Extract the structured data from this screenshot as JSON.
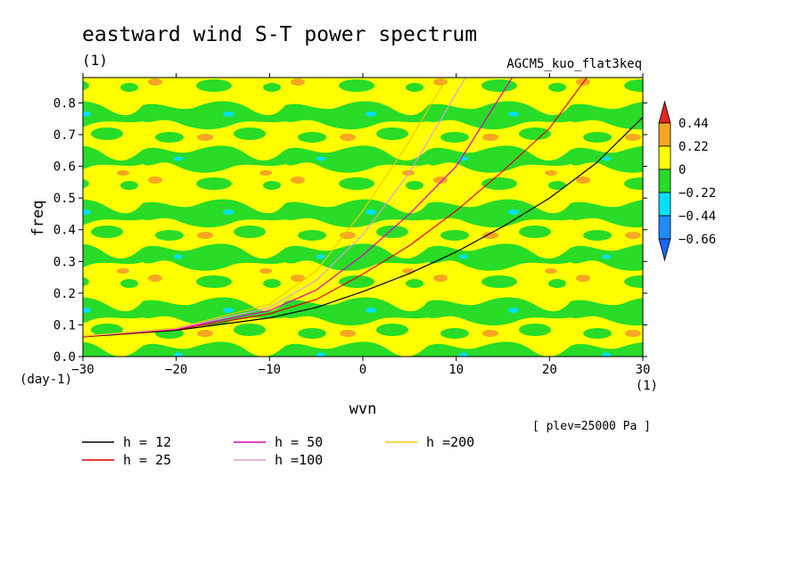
{
  "chart_data": {
    "type": "heatmap",
    "title": "eastward wind S-T power spectrum",
    "subtitle": "(1)",
    "run_label": "AGCM5_kuo_flat3keq",
    "xlabel": "wvn",
    "ylabel": "freq",
    "x_unit": "(1)",
    "y_unit": "(day-1)",
    "xlim": [
      -30,
      30
    ],
    "ylim": [
      0,
      0.88
    ],
    "x_ticks": [
      -30,
      -20,
      -10,
      0,
      10,
      20,
      30
    ],
    "x_tick_labels": [
      "-30",
      "-20",
      "-10",
      "0",
      "10",
      "20",
      "30"
    ],
    "y_ticks": [
      0,
      0.1,
      0.2,
      0.3,
      0.4,
      0.5,
      0.6,
      0.7,
      0.8
    ],
    "y_tick_labels": [
      "0.0",
      "0.1",
      "0.2",
      "0.3",
      "0.4",
      "0.5",
      "0.6",
      "0.7",
      "0.8"
    ],
    "colorbar": {
      "levels": [
        "0.44",
        "0.22",
        "0",
        "-0.22",
        "-0.44",
        "-0.66"
      ],
      "colors": [
        "#e8231e",
        "#f5a623",
        "#ffff00",
        "#28dc28",
        "#00e1ff",
        "#1e8cff",
        "#1e64ff"
      ]
    },
    "field_description": "normalized log power anomaly, mostly within -0.22 to 0.22",
    "annotation": "[ plev=25000 Pa ]",
    "curves": [
      {
        "name": "h = 12",
        "color": "#000000",
        "points": [
          [
            -30,
            0.062
          ],
          [
            -20,
            0.083
          ],
          [
            -10,
            0.122
          ],
          [
            -5,
            0.155
          ],
          [
            0,
            0.205
          ],
          [
            5,
            0.262
          ],
          [
            10,
            0.33
          ],
          [
            15,
            0.41
          ],
          [
            20,
            0.5
          ],
          [
            25,
            0.61
          ],
          [
            30,
            0.755
          ]
        ]
      },
      {
        "name": "h = 25",
        "color": "#e00000",
        "points": [
          [
            -30,
            0.063
          ],
          [
            -20,
            0.085
          ],
          [
            -10,
            0.135
          ],
          [
            -5,
            0.18
          ],
          [
            0,
            0.26
          ],
          [
            5,
            0.35
          ],
          [
            10,
            0.46
          ],
          [
            15,
            0.585
          ],
          [
            20,
            0.72
          ],
          [
            24,
            0.88
          ]
        ]
      },
      {
        "name": "h = 50",
        "color": "#e000c0",
        "points": [
          [
            -30,
            0.064
          ],
          [
            -20,
            0.087
          ],
          [
            -10,
            0.145
          ],
          [
            -5,
            0.21
          ],
          [
            0,
            0.32
          ],
          [
            5,
            0.45
          ],
          [
            10,
            0.6
          ],
          [
            16,
            0.88
          ]
        ]
      },
      {
        "name": "h =100",
        "color": "#d8a0d8",
        "points": [
          [
            -30,
            0.064
          ],
          [
            -20,
            0.088
          ],
          [
            -10,
            0.155
          ],
          [
            -5,
            0.24
          ],
          [
            0,
            0.385
          ],
          [
            5,
            0.58
          ],
          [
            10,
            0.83
          ],
          [
            11,
            0.88
          ]
        ]
      },
      {
        "name": "h =200",
        "color": "#f0c800",
        "points": [
          [
            -30,
            0.065
          ],
          [
            -20,
            0.09
          ],
          [
            -10,
            0.165
          ],
          [
            -5,
            0.27
          ],
          [
            0,
            0.46
          ],
          [
            5,
            0.68
          ],
          [
            9,
            0.88
          ]
        ]
      }
    ]
  }
}
